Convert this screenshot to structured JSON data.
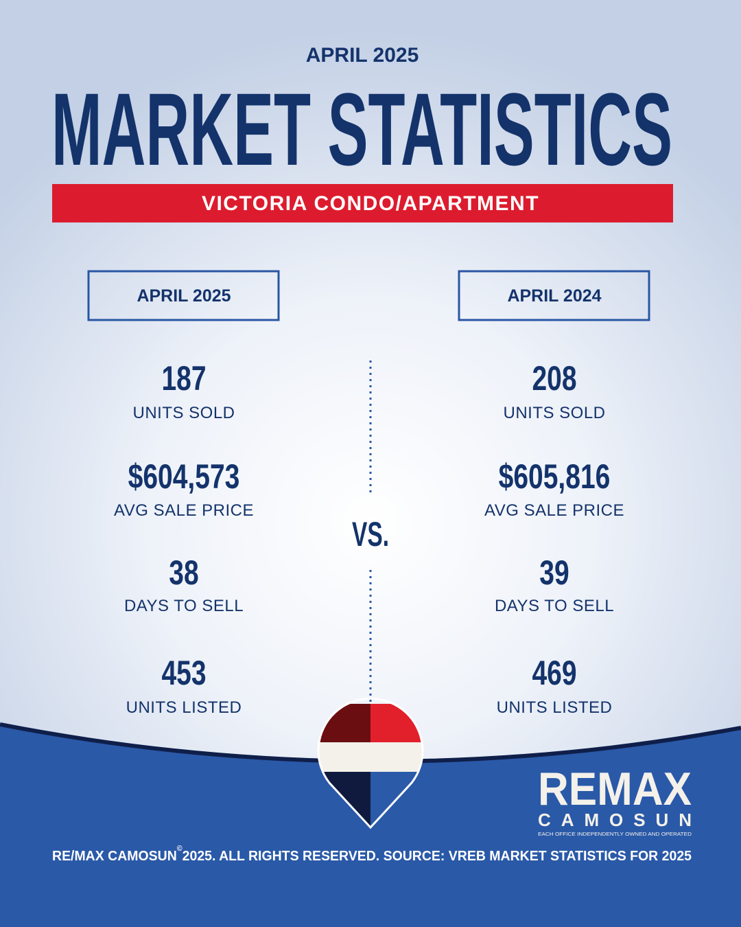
{
  "header": {
    "date": "APRIL 2025",
    "title": "MARKET STATISTICS",
    "subtitle": "VICTORIA CONDO/APARTMENT"
  },
  "columns": [
    {
      "heading": "APRIL 2025",
      "stats": [
        {
          "value": "187",
          "label": "UNITS SOLD"
        },
        {
          "value": "$604,573",
          "label": "AVG SALE PRICE"
        },
        {
          "value": "38",
          "label": "DAYS TO SELL"
        },
        {
          "value": "453",
          "label": "UNITS LISTED"
        }
      ]
    },
    {
      "heading": "APRIL 2024",
      "stats": [
        {
          "value": "208",
          "label": "UNITS SOLD"
        },
        {
          "value": "$605,816",
          "label": "AVG SALE PRICE"
        },
        {
          "value": "39",
          "label": "DAYS TO SELL"
        },
        {
          "value": "469",
          "label": "UNITS LISTED"
        }
      ]
    }
  ],
  "versus": "VS.",
  "logo": {
    "brand": "REMAX",
    "office": "CAMOSUN",
    "tagline": "EACH OFFICE INDEPENDENTLY OWNED AND OPERATED"
  },
  "footer": {
    "owner": "RE/MAX CAMOSUN",
    "symbol": "©",
    "text": "2025. ALL RIGHTS RESERVED. SOURCE: VREB MARKET STATISTICS FOR 2025"
  }
}
